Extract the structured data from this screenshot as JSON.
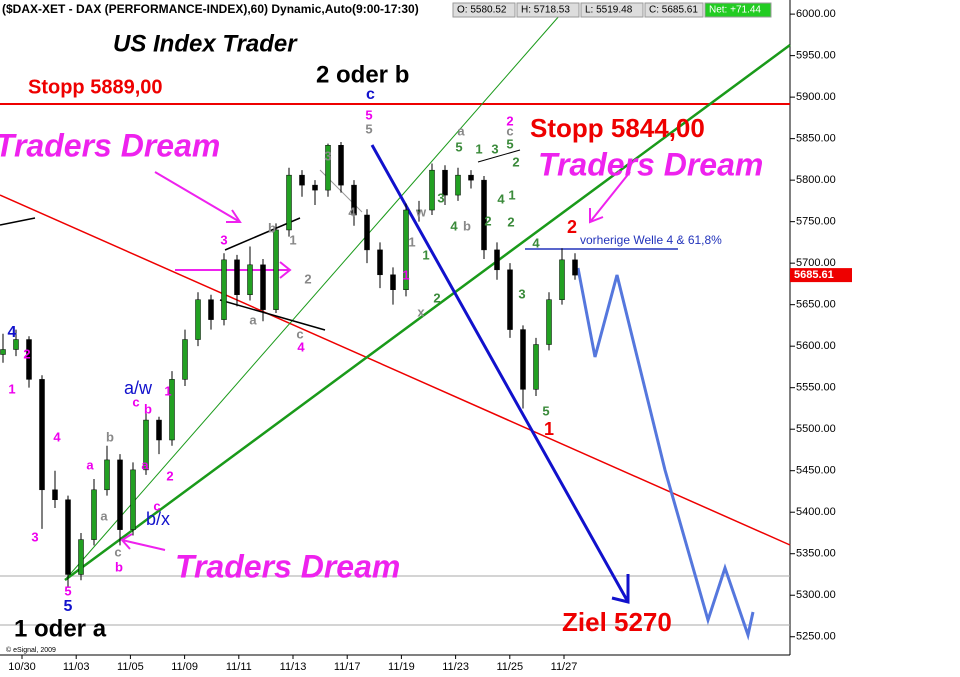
{
  "header": {
    "symbol": "($DAX-XET - DAX (PERFORMANCE-INDEX),60) Dynamic,Auto(9:00-17:30)",
    "open": "O: 5580.52",
    "high": "H: 5718.53",
    "low": "L: 5519.48",
    "close": "C: 5685.61",
    "net": "Net: +71.44"
  },
  "chart_data": {
    "type": "candlestick",
    "title": "US Index Trader",
    "categories": [
      "10/30",
      "11/03",
      "11/05",
      "11/09",
      "11/11",
      "11/13",
      "11/17",
      "11/19",
      "11/23",
      "11/25",
      "11/27"
    ],
    "candles": [
      [
        5590,
        5615,
        5580,
        5596
      ],
      [
        5596,
        5620,
        5588,
        5608
      ],
      [
        5608,
        5612,
        5550,
        5560
      ],
      [
        5560,
        5565,
        5380,
        5427
      ],
      [
        5427,
        5450,
        5405,
        5415
      ],
      [
        5415,
        5420,
        5310,
        5325
      ],
      [
        5325,
        5375,
        5318,
        5367
      ],
      [
        5367,
        5440,
        5360,
        5427
      ],
      [
        5427,
        5480,
        5420,
        5463
      ],
      [
        5463,
        5470,
        5360,
        5379
      ],
      [
        5379,
        5460,
        5372,
        5451
      ],
      [
        5451,
        5520,
        5445,
        5511
      ],
      [
        5511,
        5515,
        5470,
        5487
      ],
      [
        5487,
        5570,
        5480,
        5560
      ],
      [
        5560,
        5620,
        5552,
        5608
      ],
      [
        5608,
        5665,
        5600,
        5656
      ],
      [
        5656,
        5662,
        5620,
        5632
      ],
      [
        5632,
        5712,
        5625,
        5704
      ],
      [
        5704,
        5710,
        5648,
        5662
      ],
      [
        5662,
        5720,
        5655,
        5698
      ],
      [
        5698,
        5705,
        5630,
        5644
      ],
      [
        5644,
        5748,
        5640,
        5740
      ],
      [
        5740,
        5815,
        5732,
        5806
      ],
      [
        5806,
        5812,
        5780,
        5794
      ],
      [
        5794,
        5800,
        5770,
        5788
      ],
      [
        5788,
        5844,
        5780,
        5842
      ],
      [
        5842,
        5846,
        5785,
        5794
      ],
      [
        5794,
        5800,
        5745,
        5758
      ],
      [
        5758,
        5765,
        5700,
        5716
      ],
      [
        5716,
        5725,
        5670,
        5686
      ],
      [
        5686,
        5695,
        5650,
        5668
      ],
      [
        5668,
        5772,
        5660,
        5764
      ],
      [
        5764,
        5775,
        5750,
        5764
      ],
      [
        5764,
        5820,
        5758,
        5812
      ],
      [
        5812,
        5818,
        5770,
        5782
      ],
      [
        5782,
        5815,
        5775,
        5806
      ],
      [
        5806,
        5812,
        5790,
        5800
      ],
      [
        5800,
        5805,
        5705,
        5716
      ],
      [
        5716,
        5725,
        5680,
        5692
      ],
      [
        5692,
        5700,
        5610,
        5620
      ],
      [
        5620,
        5625,
        5525,
        5548
      ],
      [
        5548,
        5610,
        5540,
        5602
      ],
      [
        5602,
        5665,
        5595,
        5656
      ],
      [
        5656,
        5718,
        5650,
        5704
      ],
      [
        5704,
        5712,
        5680,
        5685.61
      ]
    ],
    "up_color": "#22a022",
    "down_color": "#000000",
    "ylim": [
      5228,
      6017
    ],
    "yticks": [
      {
        "value": 5250,
        "label": "5250.00"
      },
      {
        "value": 5300,
        "label": "5300.00"
      },
      {
        "value": 5350,
        "label": "5350.00"
      },
      {
        "value": 5400,
        "label": "5400.00"
      },
      {
        "value": 5450,
        "label": "5450.00"
      },
      {
        "value": 5500,
        "label": "5500.00"
      },
      {
        "value": 5550,
        "label": "5550.00"
      },
      {
        "value": 5600,
        "label": "5600.00"
      },
      {
        "value": 5650,
        "label": "5650.00"
      },
      {
        "value": 5700,
        "label": "5700.00"
      },
      {
        "value": 5750,
        "label": "5750.00"
      },
      {
        "value": 5800,
        "label": "5800.00"
      },
      {
        "value": 5850,
        "label": "5850.00"
      },
      {
        "value": 5900,
        "label": "5900.00"
      },
      {
        "value": 5950,
        "label": "5950.00"
      },
      {
        "value": 6000,
        "label": "6000.00"
      }
    ],
    "annotations": {
      "wave": "2 oder b",
      "c": "c",
      "stop1": "Stopp 5889,00",
      "stop2": "Stopp 5844,00",
      "dream": "Traders Dream",
      "prev": "vorherige Welle 4 & 61,8%",
      "target": "Ziel 5270",
      "wave1": "1 oder a",
      "aw": "a/w",
      "bx": "b/x",
      "copyright": "© eSignal, 2009"
    },
    "wave_labels": [
      "4",
      "2",
      "1",
      "4",
      "3",
      "5",
      "5",
      "a",
      "a",
      "b",
      "c",
      "b",
      "a",
      "b",
      "c",
      "1",
      "2",
      "c",
      "3",
      "b",
      "1",
      "2",
      "a",
      "c",
      "4",
      "3",
      "4",
      "5",
      "5",
      "w",
      "1",
      "1",
      "1",
      "2",
      "x",
      "3",
      "4",
      "b",
      "5",
      "a",
      "1",
      "2",
      "3",
      "4",
      "2",
      "2",
      "c",
      "5",
      "2",
      "1",
      "4",
      "3",
      "5",
      "1",
      "2"
    ]
  }
}
